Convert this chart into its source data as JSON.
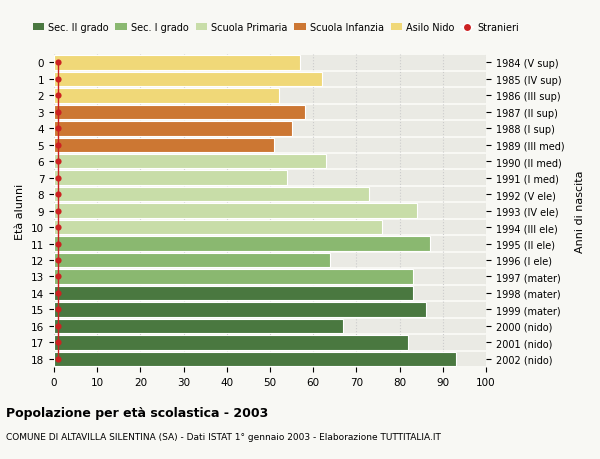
{
  "ages": [
    0,
    1,
    2,
    3,
    4,
    5,
    6,
    7,
    8,
    9,
    10,
    11,
    12,
    13,
    14,
    15,
    16,
    17,
    18
  ],
  "years": [
    "2002 (nido)",
    "2001 (nido)",
    "2000 (nido)",
    "1999 (mater)",
    "1998 (mater)",
    "1997 (mater)",
    "1996 (I ele)",
    "1995 (II ele)",
    "1994 (III ele)",
    "1993 (IV ele)",
    "1992 (V ele)",
    "1991 (I med)",
    "1990 (II med)",
    "1989 (III med)",
    "1988 (I sup)",
    "1987 (II sup)",
    "1986 (III sup)",
    "1985 (IV sup)",
    "1984 (V sup)"
  ],
  "values": [
    57,
    62,
    52,
    58,
    55,
    51,
    63,
    54,
    73,
    84,
    76,
    87,
    64,
    83,
    83,
    86,
    67,
    82,
    93
  ],
  "bar_colors": [
    "#f0d878",
    "#f0d878",
    "#f0d878",
    "#cc7733",
    "#cc7733",
    "#cc7733",
    "#c8dda8",
    "#c8dda8",
    "#c8dda8",
    "#c8dda8",
    "#c8dda8",
    "#8ab870",
    "#8ab870",
    "#8ab870",
    "#4a7840",
    "#4a7840",
    "#4a7840",
    "#4a7840",
    "#4a7840"
  ],
  "legend_labels": [
    "Sec. II grado",
    "Sec. I grado",
    "Scuola Primaria",
    "Scuola Infanzia",
    "Asilo Nido",
    "Stranieri"
  ],
  "legend_colors": [
    "#4a7840",
    "#8ab870",
    "#c8dda8",
    "#cc7733",
    "#f0d878",
    "#cc2222"
  ],
  "stranieri_color": "#cc2222",
  "title": "Popolazione per età scolastica - 2003",
  "subtitle": "COMUNE DI ALTAVILLA SILENTINA (SA) - Dati ISTAT 1° gennaio 2003 - Elaborazione TUTTITALIA.IT",
  "ylabel_left": "Età alunni",
  "ylabel_right": "Anni di nascita",
  "xlim": [
    0,
    100
  ],
  "xticks": [
    0,
    10,
    20,
    30,
    40,
    50,
    60,
    70,
    80,
    90,
    100
  ],
  "bg_color": "#f8f8f4",
  "bar_bg_color": "#eaeae4",
  "grid_color": "#cccccc"
}
